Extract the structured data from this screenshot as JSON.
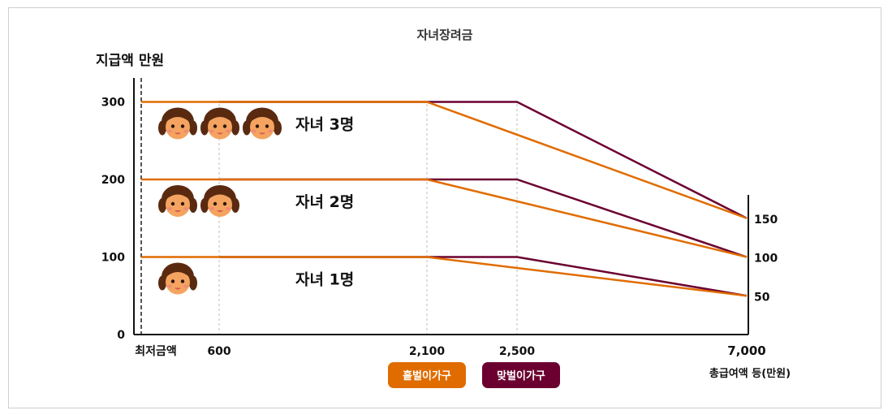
{
  "chart_data": {
    "type": "line",
    "title": "자녀장려금",
    "ylabel": "지급액 만원",
    "xlabel": "총급여액 등(만원)",
    "x_start_label": "최저금액",
    "x_ticks": [
      "600",
      "2,100",
      "2,500",
      "7,000"
    ],
    "y_ticks": [
      "0",
      "100",
      "200",
      "300"
    ],
    "right_ticks": [
      "150",
      "100",
      "50"
    ],
    "ylim": [
      0,
      340
    ],
    "groups": [
      {
        "label": "자녀 3명",
        "children": 3,
        "single_earner": [
          [
            0,
            300
          ],
          [
            2100,
            300
          ],
          [
            7000,
            150
          ]
        ],
        "dual_earner": [
          [
            600,
            300
          ],
          [
            2500,
            300
          ],
          [
            7000,
            150
          ]
        ]
      },
      {
        "label": "자녀 2명",
        "children": 2,
        "single_earner": [
          [
            0,
            200
          ],
          [
            2100,
            200
          ],
          [
            7000,
            100
          ]
        ],
        "dual_earner": [
          [
            600,
            200
          ],
          [
            2500,
            200
          ],
          [
            7000,
            100
          ]
        ]
      },
      {
        "label": "자녀 1명",
        "children": 1,
        "single_earner": [
          [
            0,
            100
          ],
          [
            2100,
            100
          ],
          [
            7000,
            50
          ]
        ],
        "dual_earner": [
          [
            600,
            100
          ],
          [
            2500,
            100
          ],
          [
            7000,
            50
          ]
        ]
      }
    ],
    "series": [
      {
        "name": "홑벌이가구",
        "color": "#e06c00"
      },
      {
        "name": "맞벌이가구",
        "color": "#6b0030"
      }
    ],
    "grid": false,
    "legend_position": "bottom-center"
  }
}
